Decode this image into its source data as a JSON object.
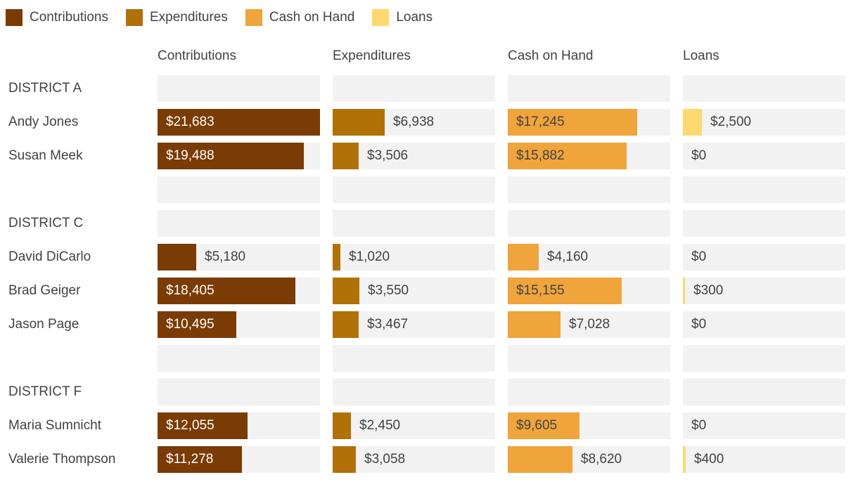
{
  "colors": {
    "background": "#FFFFFF",
    "track": "#F2F2F2",
    "text": "#424242"
  },
  "scale": {
    "max": 21683
  },
  "legend": {
    "items": [
      {
        "label": "Contributions",
        "color": "#7A3B04"
      },
      {
        "label": "Expenditures",
        "color": "#B17109"
      },
      {
        "label": "Cash on Hand",
        "color": "#F0A43C"
      },
      {
        "label": "Loans",
        "color": "#FDD870"
      }
    ]
  },
  "columns": [
    {
      "label": "Contributions",
      "color": "#7A3B04",
      "inside_label_color": "#FFFFFF"
    },
    {
      "label": "Expenditures",
      "color": "#B17109",
      "inside_label_color": "#424242"
    },
    {
      "label": "Cash on Hand",
      "color": "#F0A43C",
      "inside_label_color": "#424242"
    },
    {
      "label": "Loans",
      "color": "#FDD870",
      "inside_label_color": "#424242"
    }
  ],
  "rows": [
    {
      "type": "district",
      "label": "DISTRICT A",
      "cells": [
        null,
        null,
        null,
        null
      ]
    },
    {
      "type": "candidate",
      "label": "Andy Jones",
      "cells": [
        {
          "value": 21683,
          "display": "$21,683"
        },
        {
          "value": 6938,
          "display": "$6,938"
        },
        {
          "value": 17245,
          "display": "$17,245"
        },
        {
          "value": 2500,
          "display": "$2,500"
        }
      ]
    },
    {
      "type": "candidate",
      "label": "Susan Meek",
      "cells": [
        {
          "value": 19488,
          "display": "$19,488"
        },
        {
          "value": 3506,
          "display": "$3,506"
        },
        {
          "value": 15882,
          "display": "$15,882"
        },
        {
          "value": 0,
          "display": "$0"
        }
      ]
    },
    {
      "type": "spacer",
      "label": "",
      "cells": [
        null,
        null,
        null,
        null
      ]
    },
    {
      "type": "district",
      "label": "DISTRICT C",
      "cells": [
        null,
        null,
        null,
        null
      ]
    },
    {
      "type": "candidate",
      "label": "David DiCarlo",
      "cells": [
        {
          "value": 5180,
          "display": "$5,180"
        },
        {
          "value": 1020,
          "display": "$1,020"
        },
        {
          "value": 4160,
          "display": "$4,160"
        },
        {
          "value": 0,
          "display": "$0"
        }
      ]
    },
    {
      "type": "candidate",
      "label": "Brad Geiger",
      "cells": [
        {
          "value": 18405,
          "display": "$18,405"
        },
        {
          "value": 3550,
          "display": "$3,550"
        },
        {
          "value": 15155,
          "display": "$15,155"
        },
        {
          "value": 300,
          "display": "$300"
        }
      ]
    },
    {
      "type": "candidate",
      "label": "Jason Page",
      "cells": [
        {
          "value": 10495,
          "display": "$10,495"
        },
        {
          "value": 3467,
          "display": "$3,467"
        },
        {
          "value": 7028,
          "display": "$7,028"
        },
        {
          "value": 0,
          "display": "$0"
        }
      ]
    },
    {
      "type": "spacer",
      "label": "",
      "cells": [
        null,
        null,
        null,
        null
      ]
    },
    {
      "type": "district",
      "label": "DISTRICT F",
      "cells": [
        null,
        null,
        null,
        null
      ]
    },
    {
      "type": "candidate",
      "label": "Maria Sumnicht",
      "cells": [
        {
          "value": 12055,
          "display": "$12,055"
        },
        {
          "value": 2450,
          "display": "$2,450"
        },
        {
          "value": 9605,
          "display": "$9,605"
        },
        {
          "value": 0,
          "display": "$0"
        }
      ]
    },
    {
      "type": "candidate",
      "label": "Valerie Thompson",
      "cells": [
        {
          "value": 11278,
          "display": "$11,278"
        },
        {
          "value": 3058,
          "display": "$3,058"
        },
        {
          "value": 8620,
          "display": "$8,620"
        },
        {
          "value": 400,
          "display": "$400"
        }
      ]
    }
  ],
  "chart_data": {
    "type": "bar",
    "title": "",
    "xlabel": "",
    "ylabel": "",
    "legend_position": "top",
    "grid": false,
    "xlim": [
      0,
      21683
    ],
    "column_headers": [
      "Contributions",
      "Expenditures",
      "Cash on Hand",
      "Loans"
    ],
    "groups": [
      {
        "district": "DISTRICT A",
        "candidates": [
          "Andy Jones",
          "Susan Meek"
        ]
      },
      {
        "district": "DISTRICT C",
        "candidates": [
          "David DiCarlo",
          "Brad Geiger",
          "Jason Page"
        ]
      },
      {
        "district": "DISTRICT F",
        "candidates": [
          "Maria Sumnicht",
          "Valerie Thompson"
        ]
      }
    ],
    "categories": [
      "Andy Jones",
      "Susan Meek",
      "David DiCarlo",
      "Brad Geiger",
      "Jason Page",
      "Maria Sumnicht",
      "Valerie Thompson"
    ],
    "series": [
      {
        "name": "Contributions",
        "color": "#7A3B04",
        "values": [
          21683,
          19488,
          5180,
          18405,
          10495,
          12055,
          11278
        ]
      },
      {
        "name": "Expenditures",
        "color": "#B17109",
        "values": [
          6938,
          3506,
          1020,
          3550,
          3467,
          2450,
          3058
        ]
      },
      {
        "name": "Cash on Hand",
        "color": "#F0A43C",
        "values": [
          17245,
          15882,
          4160,
          15155,
          7028,
          9605,
          8620
        ]
      },
      {
        "name": "Loans",
        "color": "#FDD870",
        "values": [
          2500,
          0,
          0,
          300,
          0,
          0,
          400
        ]
      }
    ]
  }
}
